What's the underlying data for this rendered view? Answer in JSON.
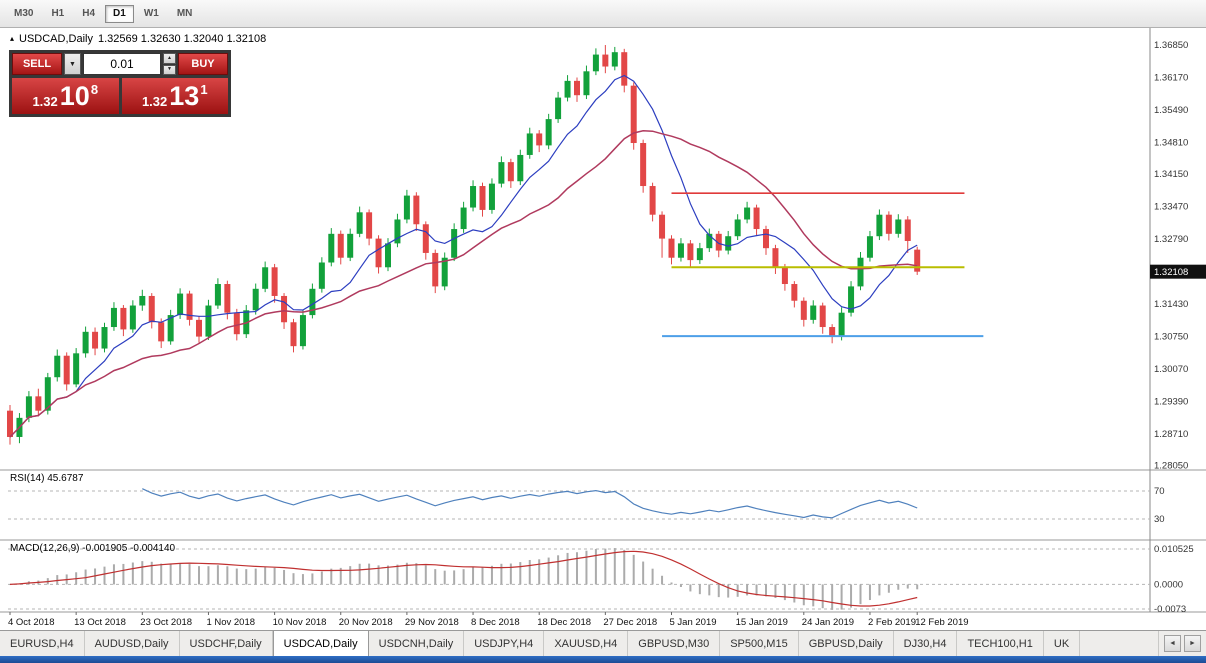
{
  "toolbar": {
    "timeframes": [
      {
        "label": "M30",
        "active": false
      },
      {
        "label": "H1",
        "active": false
      },
      {
        "label": "H4",
        "active": false
      },
      {
        "label": "D1",
        "active": true
      },
      {
        "label": "W1",
        "active": false
      },
      {
        "label": "MN",
        "active": false
      }
    ]
  },
  "chart": {
    "title": {
      "marker": "▴",
      "symbol": "USDCAD,Daily",
      "ohlc": "1.32569 1.32630 1.32040 1.32108"
    },
    "current_price": "1.32108",
    "trade_panel": {
      "sell_label": "SELL",
      "buy_label": "BUY",
      "volume": "0.01",
      "dropdown_glyph": "▼",
      "spin_up": "▲",
      "spin_down": "▼",
      "sell_price": {
        "prefix": "1.32",
        "big": "10",
        "sup": "8"
      },
      "buy_price": {
        "prefix": "1.32",
        "big": "13",
        "sup": "1"
      }
    }
  },
  "rsi_label": "RSI(14) 45.6787",
  "macd_label": "MACD(12,26,9) -0.001905 -0.004140",
  "tabbar": {
    "scroll_left": "◄",
    "scroll_right": "►"
  },
  "tabs": [
    {
      "label": "EURUSD,H4",
      "active": false
    },
    {
      "label": "AUDUSD,Daily",
      "active": false
    },
    {
      "label": "USDCHF,Daily",
      "active": false
    },
    {
      "label": "USDCAD,Daily",
      "active": true
    },
    {
      "label": "USDCNH,Daily",
      "active": false
    },
    {
      "label": "USDJPY,H4",
      "active": false
    },
    {
      "label": "XAUUSD,H4",
      "active": false
    },
    {
      "label": "GBPUSD,M30",
      "active": false
    },
    {
      "label": "SP500,M15",
      "active": false
    },
    {
      "label": "GBPUSD,Daily",
      "active": false
    },
    {
      "label": "DJ30,H4",
      "active": false
    },
    {
      "label": "TECH100,H1",
      "active": false
    },
    {
      "label": "UK",
      "active": false
    }
  ],
  "chart_data": {
    "type": "candlestick",
    "symbol": "USDCAD",
    "timeframe": "Daily",
    "ohlc_display": {
      "open": 1.32569,
      "high": 1.3263,
      "low": 1.3204,
      "close": 1.32108
    },
    "price_axis": [
      "1.36850",
      "1.36170",
      "1.35490",
      "1.34810",
      "1.34150",
      "1.33470",
      "1.32790",
      "1.32110",
      "1.31430",
      "1.30750",
      "1.30070",
      "1.29390",
      "1.28710",
      "1.28050"
    ],
    "colors": {
      "up": "#12a13b",
      "down": "#e24747",
      "fast_ma": "#2c3ec0",
      "slow_ma": "#b03a5e",
      "rsi": "#4f81bd",
      "macd_hist": "#ababab",
      "macd_signal": "#c03030"
    },
    "overlays": {
      "fast_period": 8,
      "slow_period": 20
    },
    "hlines": [
      {
        "price": 1.3375,
        "from": 70,
        "to": 101,
        "color": "#e03a3a",
        "width": 1.6
      },
      {
        "price": 1.322,
        "from": 70,
        "to": 101,
        "color": "#b9bd00",
        "width": 2
      },
      {
        "price": 1.3076,
        "from": 69,
        "to": 103,
        "color": "#4d9fe8",
        "width": 2
      }
    ],
    "rsi": {
      "period": 14,
      "value": 45.6787,
      "levels": [
        70,
        30
      ]
    },
    "macd": {
      "fast": 12,
      "slow": 26,
      "signal_period": 9,
      "main": -0.001905,
      "signal": -0.00414,
      "axis_labels": [
        "0.010525",
        "0.0000",
        "-0.0073"
      ]
    },
    "x_labels": [
      {
        "i": 0,
        "t": "4 Oct 2018"
      },
      {
        "i": 7,
        "t": "13 Oct 2018"
      },
      {
        "i": 14,
        "t": "23 Oct 2018"
      },
      {
        "i": 21,
        "t": "1 Nov 2018"
      },
      {
        "i": 28,
        "t": "10 Nov 2018"
      },
      {
        "i": 35,
        "t": "20 Nov 2018"
      },
      {
        "i": 42,
        "t": "29 Nov 2018"
      },
      {
        "i": 49,
        "t": "8 Dec 2018"
      },
      {
        "i": 56,
        "t": "18 Dec 2018"
      },
      {
        "i": 63,
        "t": "27 Dec 2018"
      },
      {
        "i": 70,
        "t": "5 Jan 2019"
      },
      {
        "i": 77,
        "t": "15 Jan 2019"
      },
      {
        "i": 84,
        "t": "24 Jan 2019"
      },
      {
        "i": 91,
        "t": "2 Feb 2019"
      },
      {
        "i": 96,
        "t": "12 Feb 2019"
      }
    ],
    "candles": [
      [
        1.292,
        1.2932,
        1.2849,
        1.2865
      ],
      [
        1.2865,
        1.2915,
        1.2852,
        1.2905
      ],
      [
        1.2905,
        1.2961,
        1.2896,
        1.295
      ],
      [
        1.295,
        1.2966,
        1.2908,
        1.292
      ],
      [
        1.292,
        1.2999,
        1.2912,
        1.299
      ],
      [
        1.299,
        1.3048,
        1.2981,
        1.3035
      ],
      [
        1.3035,
        1.3042,
        1.2962,
        1.2975
      ],
      [
        1.2975,
        1.3051,
        1.2969,
        1.304
      ],
      [
        1.304,
        1.3096,
        1.3031,
        1.3085
      ],
      [
        1.3085,
        1.3094,
        1.3036,
        1.305
      ],
      [
        1.305,
        1.3104,
        1.3042,
        1.3095
      ],
      [
        1.3095,
        1.3147,
        1.3087,
        1.3135
      ],
      [
        1.3135,
        1.3141,
        1.3076,
        1.309
      ],
      [
        1.309,
        1.3151,
        1.3083,
        1.314
      ],
      [
        1.314,
        1.3173,
        1.3129,
        1.316
      ],
      [
        1.316,
        1.3166,
        1.3092,
        1.3105
      ],
      [
        1.3105,
        1.3113,
        1.3051,
        1.3065
      ],
      [
        1.3065,
        1.3131,
        1.3058,
        1.312
      ],
      [
        1.312,
        1.3176,
        1.3112,
        1.3165
      ],
      [
        1.3165,
        1.3171,
        1.3098,
        1.311
      ],
      [
        1.311,
        1.3118,
        1.3062,
        1.3075
      ],
      [
        1.3075,
        1.3152,
        1.3068,
        1.314
      ],
      [
        1.314,
        1.3197,
        1.3133,
        1.3185
      ],
      [
        1.3185,
        1.3192,
        1.3111,
        1.3125
      ],
      [
        1.3125,
        1.3133,
        1.3067,
        1.308
      ],
      [
        1.308,
        1.3141,
        1.3072,
        1.313
      ],
      [
        1.313,
        1.3186,
        1.3121,
        1.3175
      ],
      [
        1.3175,
        1.3232,
        1.3168,
        1.322
      ],
      [
        1.322,
        1.3227,
        1.3146,
        1.316
      ],
      [
        1.316,
        1.3166,
        1.3091,
        1.3105
      ],
      [
        1.3105,
        1.3112,
        1.3042,
        1.3055
      ],
      [
        1.3055,
        1.3131,
        1.3048,
        1.312
      ],
      [
        1.312,
        1.3186,
        1.3113,
        1.3175
      ],
      [
        1.3175,
        1.3241,
        1.3167,
        1.323
      ],
      [
        1.323,
        1.3302,
        1.3222,
        1.329
      ],
      [
        1.329,
        1.3297,
        1.3226,
        1.324
      ],
      [
        1.324,
        1.3301,
        1.3233,
        1.329
      ],
      [
        1.329,
        1.3347,
        1.3283,
        1.3335
      ],
      [
        1.3335,
        1.3341,
        1.3266,
        1.328
      ],
      [
        1.328,
        1.3287,
        1.3207,
        1.322
      ],
      [
        1.322,
        1.3281,
        1.3212,
        1.327
      ],
      [
        1.327,
        1.3332,
        1.3262,
        1.332
      ],
      [
        1.332,
        1.3382,
        1.3312,
        1.337
      ],
      [
        1.337,
        1.3377,
        1.3296,
        1.331
      ],
      [
        1.331,
        1.3316,
        1.3236,
        1.325
      ],
      [
        1.325,
        1.3257,
        1.3166,
        1.318
      ],
      [
        1.318,
        1.3251,
        1.3172,
        1.324
      ],
      [
        1.324,
        1.3312,
        1.3233,
        1.33
      ],
      [
        1.33,
        1.3357,
        1.3292,
        1.3345
      ],
      [
        1.3345,
        1.3402,
        1.3337,
        1.339
      ],
      [
        1.339,
        1.3397,
        1.3326,
        1.334
      ],
      [
        1.334,
        1.3406,
        1.3332,
        1.3395
      ],
      [
        1.3395,
        1.3452,
        1.3387,
        1.344
      ],
      [
        1.344,
        1.3447,
        1.3386,
        1.34
      ],
      [
        1.34,
        1.3466,
        1.3392,
        1.3455
      ],
      [
        1.3455,
        1.3512,
        1.3447,
        1.35
      ],
      [
        1.35,
        1.3507,
        1.3461,
        1.3475
      ],
      [
        1.3475,
        1.3541,
        1.3467,
        1.353
      ],
      [
        1.353,
        1.3587,
        1.3522,
        1.3575
      ],
      [
        1.3575,
        1.3622,
        1.3567,
        1.361
      ],
      [
        1.361,
        1.3617,
        1.3566,
        1.358
      ],
      [
        1.358,
        1.3642,
        1.3572,
        1.363
      ],
      [
        1.363,
        1.3678,
        1.3622,
        1.3665
      ],
      [
        1.3665,
        1.3685,
        1.3626,
        1.364
      ],
      [
        1.364,
        1.3681,
        1.3632,
        1.367
      ],
      [
        1.367,
        1.3677,
        1.3586,
        1.36
      ],
      [
        1.36,
        1.3607,
        1.3466,
        1.348
      ],
      [
        1.348,
        1.3487,
        1.3376,
        1.339
      ],
      [
        1.339,
        1.3397,
        1.3316,
        1.333
      ],
      [
        1.333,
        1.3337,
        1.324,
        1.328
      ],
      [
        1.328,
        1.3287,
        1.3226,
        1.324
      ],
      [
        1.324,
        1.3281,
        1.3232,
        1.327
      ],
      [
        1.327,
        1.3277,
        1.3221,
        1.3235
      ],
      [
        1.3235,
        1.3271,
        1.3227,
        1.326
      ],
      [
        1.326,
        1.3301,
        1.3252,
        1.329
      ],
      [
        1.329,
        1.3296,
        1.3241,
        1.3255
      ],
      [
        1.3255,
        1.3296,
        1.3247,
        1.3285
      ],
      [
        1.3285,
        1.3331,
        1.3277,
        1.332
      ],
      [
        1.332,
        1.3357,
        1.3312,
        1.3345
      ],
      [
        1.3345,
        1.3351,
        1.3286,
        1.33
      ],
      [
        1.33,
        1.3307,
        1.3246,
        1.326
      ],
      [
        1.326,
        1.3267,
        1.3206,
        1.322
      ],
      [
        1.322,
        1.3227,
        1.3171,
        1.3185
      ],
      [
        1.3185,
        1.3191,
        1.3136,
        1.315
      ],
      [
        1.315,
        1.3157,
        1.3096,
        1.311
      ],
      [
        1.311,
        1.3151,
        1.3102,
        1.314
      ],
      [
        1.314,
        1.3146,
        1.3081,
        1.3095
      ],
      [
        1.3095,
        1.3101,
        1.3061,
        1.3075
      ],
      [
        1.3075,
        1.3136,
        1.3067,
        1.3125
      ],
      [
        1.3125,
        1.3191,
        1.3117,
        1.318
      ],
      [
        1.318,
        1.3252,
        1.3172,
        1.324
      ],
      [
        1.324,
        1.3296,
        1.3232,
        1.3285
      ],
      [
        1.3285,
        1.3341,
        1.3277,
        1.333
      ],
      [
        1.333,
        1.3337,
        1.3276,
        1.329
      ],
      [
        1.329,
        1.3331,
        1.3282,
        1.332
      ],
      [
        1.332,
        1.3327,
        1.325,
        1.3275
      ],
      [
        1.32569,
        1.3263,
        1.3204,
        1.32108
      ]
    ]
  }
}
